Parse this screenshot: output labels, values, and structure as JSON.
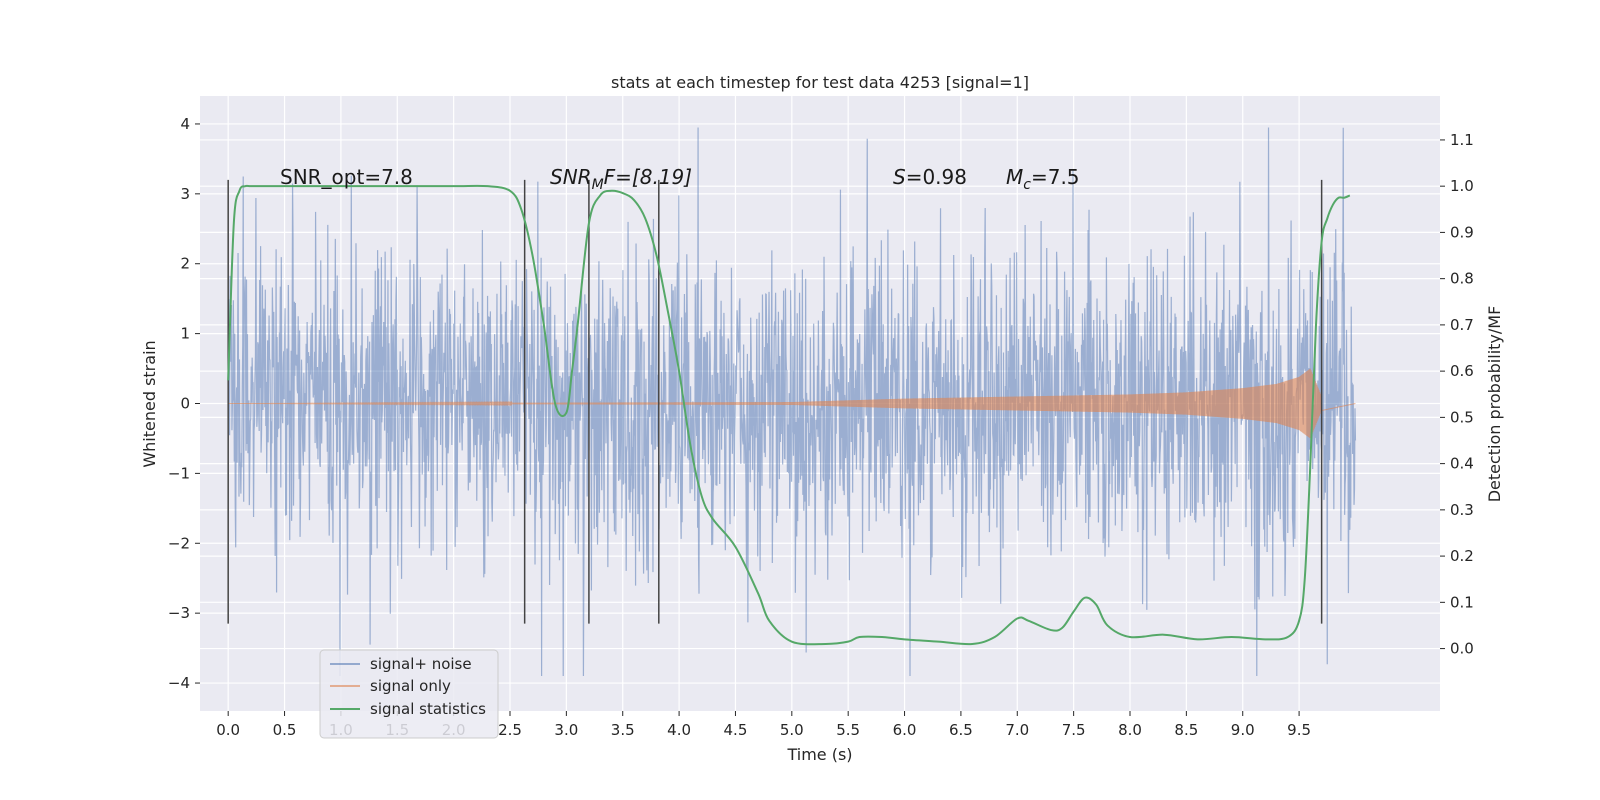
{
  "chart_data": {
    "type": "line",
    "title": "stats at each timestep for test data 4253 [signal=1]",
    "xlabel": "Time (s)",
    "ylabel": "Whitened strain",
    "y2label": "Detection probability/MF",
    "xlim": [
      -0.25,
      10.75
    ],
    "ylim": [
      -4.4,
      4.4
    ],
    "y2lim": [
      -0.135,
      1.195
    ],
    "x_ticks": [
      0.0,
      0.5,
      1.0,
      1.5,
      2.0,
      2.5,
      3.0,
      3.5,
      4.0,
      4.5,
      5.0,
      5.5,
      6.0,
      6.5,
      7.0,
      7.5,
      8.0,
      8.5,
      9.0,
      9.5
    ],
    "x_tick_labels": [
      "0.0",
      "0.5",
      "1.0",
      "1.5",
      "2.0",
      "2.5",
      "3.0",
      "3.5",
      "4.0",
      "4.5",
      "5.0",
      "5.5",
      "6.0",
      "6.5",
      "7.0",
      "7.5",
      "8.0",
      "8.5",
      "9.0",
      "9.5"
    ],
    "y_ticks": [
      -4,
      -3,
      -2,
      -1,
      0,
      1,
      2,
      3,
      4
    ],
    "y_tick_labels": [
      "−4",
      "−3",
      "−2",
      "−1",
      "0",
      "1",
      "2",
      "3",
      "4"
    ],
    "y2_ticks": [
      0.0,
      0.1,
      0.2,
      0.3,
      0.4,
      0.5,
      0.6,
      0.7,
      0.8,
      0.9,
      1.0,
      1.1
    ],
    "y2_tick_labels": [
      "0.0",
      "0.1",
      "0.2",
      "0.3",
      "0.4",
      "0.5",
      "0.6",
      "0.7",
      "0.8",
      "0.9",
      "1.0",
      "1.1"
    ],
    "grid": true,
    "legend_placement": "lower-left",
    "series": [
      {
        "name": "signal+ noise",
        "color": "#4c72b0",
        "description": "whitened noise fluctuating roughly between -2.5 and 2.5 with spikes to about +/-4",
        "x_range": [
          0.0,
          10.0
        ],
        "amplitude_approx": 2.2
      },
      {
        "name": "signal only",
        "color": "#dd8452",
        "description": "chirp signal growing in amplitude toward t=9.7",
        "envelope": {
          "x": [
            0.0,
            5.0,
            6.0,
            7.0,
            8.0,
            8.5,
            9.0,
            9.3,
            9.5,
            9.6,
            9.7
          ],
          "amp": [
            0.0,
            0.02,
            0.07,
            0.1,
            0.13,
            0.16,
            0.22,
            0.28,
            0.38,
            0.5,
            0.1
          ]
        }
      },
      {
        "name": "signal statistics",
        "color": "#55a868",
        "axis": "right",
        "x": [
          0.0,
          0.05,
          0.1,
          0.15,
          0.2,
          0.3,
          0.5,
          1.0,
          1.5,
          2.0,
          2.3,
          2.5,
          2.6,
          2.7,
          2.8,
          2.9,
          3.0,
          3.05,
          3.1,
          3.2,
          3.3,
          3.4,
          3.5,
          3.6,
          3.7,
          3.8,
          3.9,
          4.0,
          4.1,
          4.2,
          4.3,
          4.5,
          4.7,
          4.8,
          5.0,
          5.3,
          5.5,
          5.6,
          5.8,
          6.0,
          6.3,
          6.6,
          6.8,
          7.0,
          7.1,
          7.3,
          7.4,
          7.5,
          7.6,
          7.7,
          7.8,
          8.0,
          8.3,
          8.6,
          8.9,
          9.2,
          9.4,
          9.5,
          9.55,
          9.6,
          9.65,
          9.7,
          9.75,
          9.8,
          9.85,
          9.9,
          9.95
        ],
        "values": [
          0.58,
          0.92,
          0.99,
          1.0,
          1.0,
          1.0,
          1.0,
          1.0,
          1.0,
          1.0,
          1.0,
          0.99,
          0.95,
          0.85,
          0.7,
          0.53,
          0.51,
          0.6,
          0.7,
          0.92,
          0.98,
          0.99,
          0.985,
          0.97,
          0.93,
          0.85,
          0.73,
          0.6,
          0.44,
          0.33,
          0.28,
          0.22,
          0.12,
          0.06,
          0.015,
          0.01,
          0.015,
          0.025,
          0.025,
          0.02,
          0.015,
          0.01,
          0.025,
          0.065,
          0.06,
          0.04,
          0.045,
          0.08,
          0.11,
          0.095,
          0.05,
          0.025,
          0.03,
          0.02,
          0.025,
          0.02,
          0.025,
          0.06,
          0.15,
          0.4,
          0.7,
          0.88,
          0.93,
          0.96,
          0.975,
          0.975,
          0.98
        ]
      }
    ],
    "vlines": [
      0.0,
      2.63,
      3.2,
      3.82,
      9.7
    ],
    "annotations": {
      "snr_opt": "SNR_opt=7.8",
      "snr_mf_main": "SNR",
      "snr_mf_sub": "M",
      "snr_mf_rest": "F=[8.19]",
      "s_italic": "S",
      "s_rest": "=0.98",
      "mc_italic": "M",
      "mc_sub": "c",
      "mc_rest": "=7.5"
    }
  },
  "colors": {
    "plot_bg": "#eaeaf2",
    "grid": "#ffffff",
    "noise": "#4c72b0",
    "signal": "#dd8452",
    "stats": "#55a868",
    "vline": "#444444"
  }
}
